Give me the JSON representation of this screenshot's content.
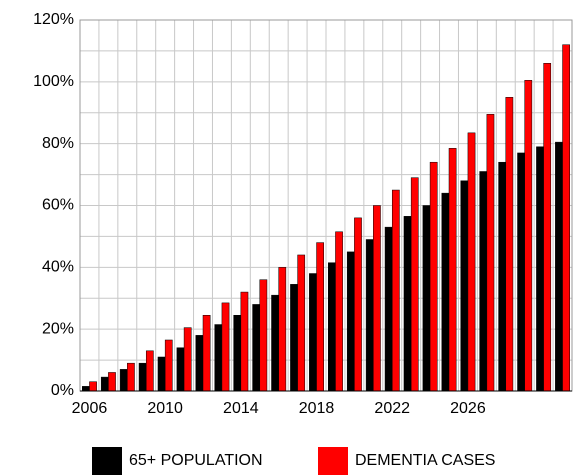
{
  "chart_data": {
    "type": "bar",
    "categories": [
      "2006",
      null,
      null,
      null,
      "2010",
      null,
      null,
      null,
      "2014",
      null,
      null,
      null,
      "2018",
      null,
      null,
      null,
      "2022",
      null,
      null,
      null,
      "2026",
      null,
      null,
      null,
      null,
      null
    ],
    "series": [
      {
        "name": "65+ POPULATION",
        "color": "#000000",
        "values": [
          1.5,
          4.5,
          7,
          9,
          11,
          14,
          18,
          21.5,
          24.5,
          28,
          31,
          34.5,
          38,
          41.5,
          45,
          49,
          53,
          56.5,
          60,
          64,
          68,
          71,
          74,
          77,
          79,
          80.5
        ]
      },
      {
        "name": "DEMENTIA CASES",
        "color": "#ff0000",
        "values": [
          3,
          6,
          9,
          13,
          16.5,
          20.5,
          24.5,
          28.5,
          32,
          36,
          40,
          44,
          48,
          51.5,
          56,
          60,
          65,
          69,
          74,
          78.5,
          83.5,
          89.5,
          95,
          100.5,
          106,
          112
        ]
      }
    ],
    "ylim": [
      0,
      120
    ],
    "yticks": [
      {
        "value": 0,
        "label": "0%"
      },
      {
        "value": 20,
        "label": "20%"
      },
      {
        "value": 40,
        "label": "40%"
      },
      {
        "value": 60,
        "label": "60%"
      },
      {
        "value": 80,
        "label": "80%"
      },
      {
        "value": 100,
        "label": "100%"
      },
      {
        "value": 120,
        "label": "120%"
      }
    ],
    "grid": true,
    "legend": "bottom"
  }
}
